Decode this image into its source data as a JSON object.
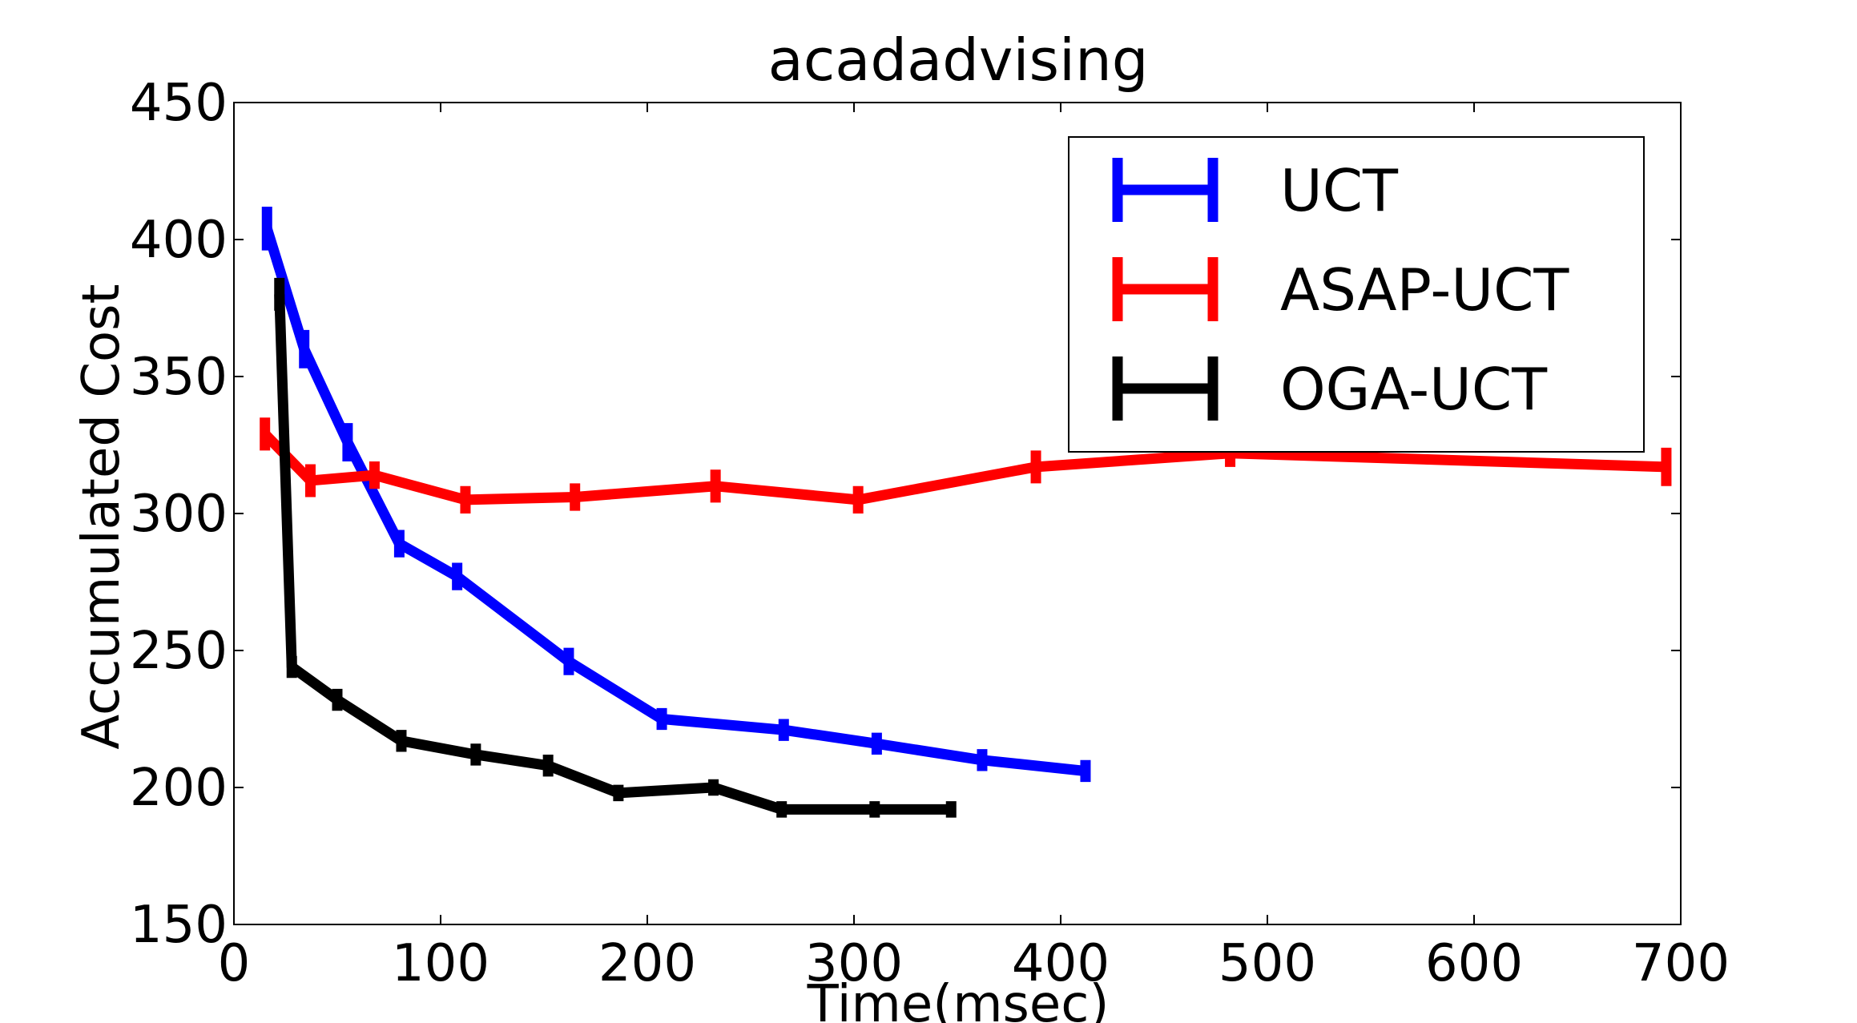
{
  "chart_data": {
    "type": "line",
    "title": "acadadvising",
    "xlabel": "Time(msec)",
    "ylabel": "Accumulated Cost",
    "xlim": [
      0,
      700
    ],
    "ylim": [
      150,
      450
    ],
    "xticks": [
      0,
      100,
      200,
      300,
      400,
      500,
      600,
      700
    ],
    "yticks": [
      150,
      200,
      250,
      300,
      350,
      400,
      450
    ],
    "grid": false,
    "legend_position": "top-right",
    "error_bars": true,
    "series": [
      {
        "name": "UCT",
        "color": "#0000ff",
        "points": [
          {
            "x": 16,
            "y": 404,
            "err": 8
          },
          {
            "x": 34,
            "y": 360,
            "err": 7
          },
          {
            "x": 55,
            "y": 326,
            "err": 7
          },
          {
            "x": 80,
            "y": 289,
            "err": 5
          },
          {
            "x": 108,
            "y": 277,
            "err": 5
          },
          {
            "x": 162,
            "y": 246,
            "err": 5
          },
          {
            "x": 207,
            "y": 225,
            "err": 4
          },
          {
            "x": 266,
            "y": 221,
            "err": 4
          },
          {
            "x": 311,
            "y": 216,
            "err": 4
          },
          {
            "x": 362,
            "y": 210,
            "err": 4
          },
          {
            "x": 412,
            "y": 206,
            "err": 4
          }
        ]
      },
      {
        "name": "ASAP-UCT",
        "color": "#ff0000",
        "points": [
          {
            "x": 15,
            "y": 329,
            "err": 6
          },
          {
            "x": 37,
            "y": 312,
            "err": 6
          },
          {
            "x": 68,
            "y": 314,
            "err": 5
          },
          {
            "x": 112,
            "y": 305,
            "err": 5
          },
          {
            "x": 165,
            "y": 306,
            "err": 5
          },
          {
            "x": 233,
            "y": 310,
            "err": 6
          },
          {
            "x": 302,
            "y": 305,
            "err": 5
          },
          {
            "x": 388,
            "y": 317,
            "err": 6
          },
          {
            "x": 482,
            "y": 322,
            "err": 5
          },
          {
            "x": 693,
            "y": 317,
            "err": 7
          }
        ]
      },
      {
        "name": "OGA-UCT",
        "color": "#000000",
        "points": [
          {
            "x": 22,
            "y": 380,
            "err": 6
          },
          {
            "x": 28,
            "y": 244,
            "err": 4
          },
          {
            "x": 50,
            "y": 232,
            "err": 4
          },
          {
            "x": 81,
            "y": 217,
            "err": 4
          },
          {
            "x": 117,
            "y": 212,
            "err": 4
          },
          {
            "x": 152,
            "y": 208,
            "err": 4
          },
          {
            "x": 186,
            "y": 198,
            "err": 3
          },
          {
            "x": 232,
            "y": 200,
            "err": 3
          },
          {
            "x": 265,
            "y": 192,
            "err": 3
          },
          {
            "x": 310,
            "y": 192,
            "err": 3
          },
          {
            "x": 347,
            "y": 192,
            "err": 3
          }
        ]
      }
    ]
  }
}
